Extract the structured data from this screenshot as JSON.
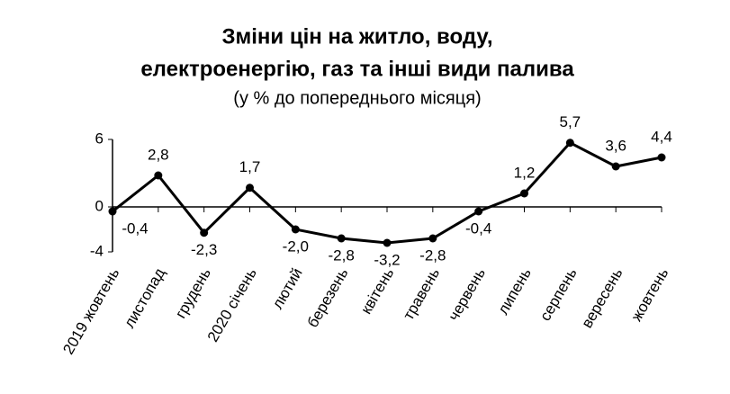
{
  "chart_data": {
    "type": "line",
    "title": [
      "Зміни цін на житло, воду,",
      "електроенергію, газ та інші види палива"
    ],
    "subtitle": "(у % до попереднього місяця)",
    "categories": [
      "2019 жовтень",
      "листопад",
      "грудень",
      "2020 січень",
      "лютий",
      "березень",
      "квітень",
      "травень",
      "червень",
      "липень",
      "серпень",
      "вересень",
      "жовтень"
    ],
    "series": [
      {
        "color": "#000000",
        "values": [
          -0.4,
          2.8,
          -2.3,
          1.7,
          -2.0,
          -2.8,
          -3.2,
          -2.8,
          -0.4,
          1.2,
          5.7,
          3.6,
          4.4
        ],
        "value_labels": [
          "-0,4",
          "2,8",
          "-2,3",
          "1,7",
          "-2,0",
          "-2,8",
          "-3,2",
          "-2,8",
          "-0,4",
          "1,2",
          "5,7",
          "3,6",
          "4,4"
        ]
      }
    ],
    "ylim": [
      -4,
      6
    ],
    "yticks": [
      -4,
      0,
      6
    ]
  }
}
